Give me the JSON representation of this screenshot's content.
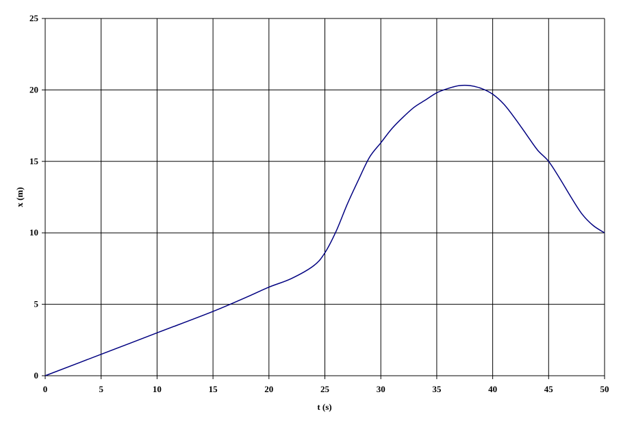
{
  "chart_data": {
    "type": "line",
    "title": "",
    "xlabel": "t (s)",
    "ylabel": "x (m)",
    "xlim": [
      0,
      50
    ],
    "ylim": [
      0,
      25
    ],
    "x_ticks": [
      "0",
      "5",
      "10",
      "15",
      "20",
      "25",
      "30",
      "35",
      "40",
      "45",
      "50"
    ],
    "y_ticks": [
      "0",
      "5",
      "10",
      "15",
      "20",
      "25"
    ],
    "grid": true,
    "legend": "none",
    "series": [
      {
        "color": "#000080",
        "x": [
          0,
          5,
          10,
          15,
          18,
          20,
          22,
          24,
          25,
          26,
          27,
          28,
          29,
          30,
          31,
          32,
          33,
          34,
          35,
          36,
          37,
          38,
          39,
          40,
          41,
          42,
          43,
          44,
          45,
          46,
          47,
          48,
          49,
          50
        ],
        "y": [
          0,
          1.5,
          3.0,
          4.5,
          5.5,
          6.2,
          6.8,
          7.7,
          8.6,
          10.1,
          12.0,
          13.7,
          15.3,
          16.3,
          17.3,
          18.1,
          18.8,
          19.3,
          19.8,
          20.1,
          20.3,
          20.3,
          20.1,
          19.7,
          19.0,
          18.0,
          16.9,
          15.8,
          15.0,
          13.8,
          12.5,
          11.3,
          10.5,
          10.0
        ]
      }
    ]
  }
}
